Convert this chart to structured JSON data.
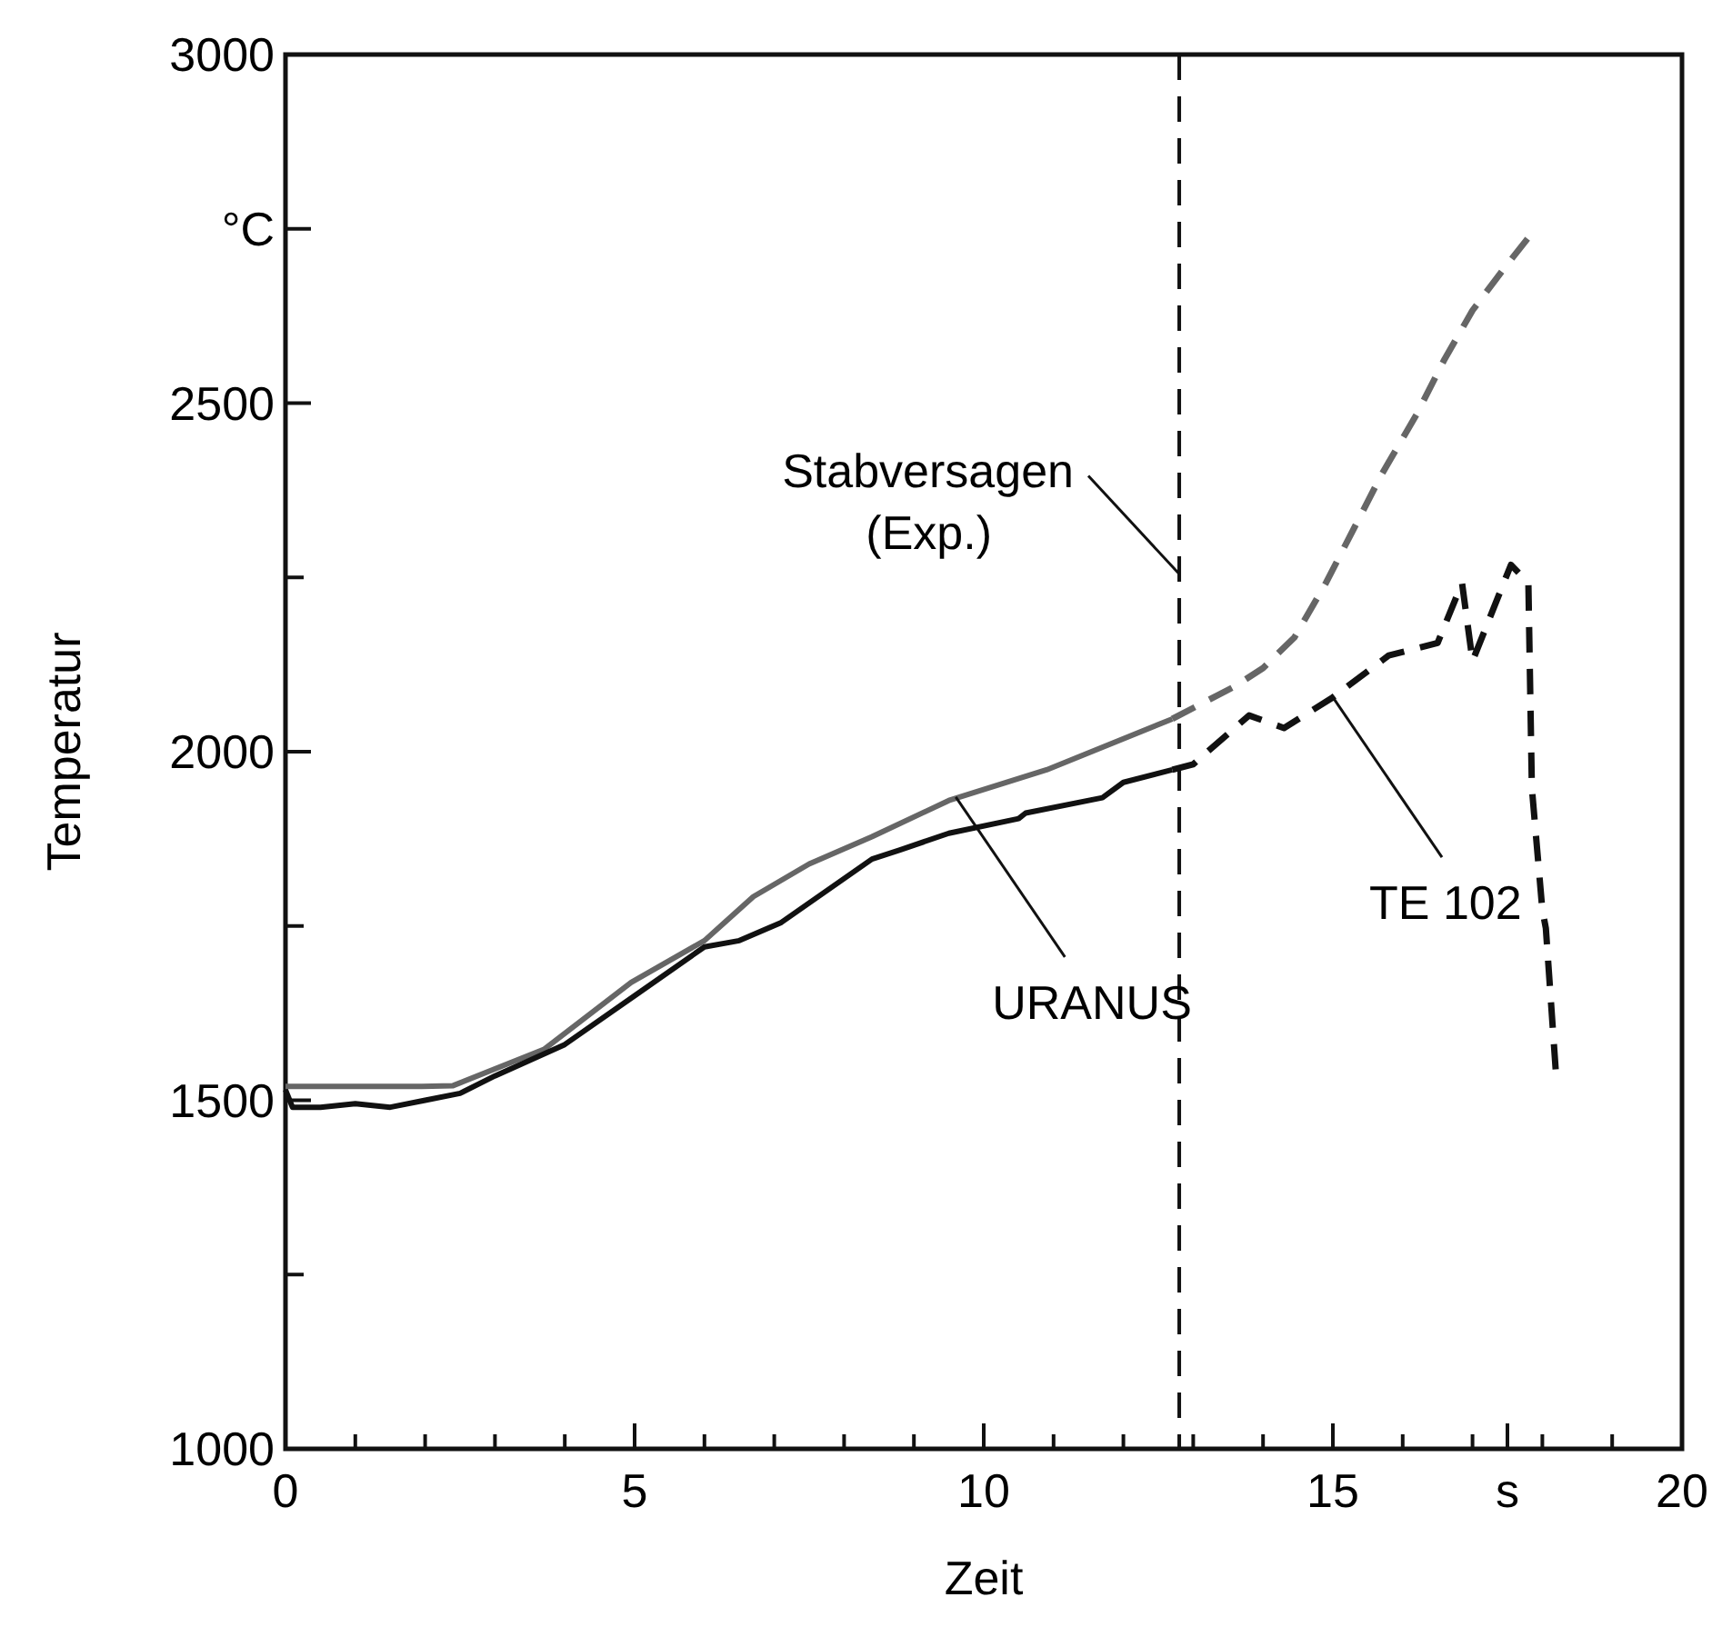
{
  "chart_data": {
    "type": "line",
    "xlabel": "Zeit",
    "ylabel": "Temperatur",
    "xlim": [
      0,
      20
    ],
    "ylim": [
      1000,
      3000
    ],
    "xticks": [
      0,
      {
        "value": 1,
        "label": null
      },
      {
        "value": 2,
        "label": null
      },
      {
        "value": 3,
        "label": null
      },
      {
        "value": 4,
        "label": null
      },
      5,
      {
        "value": 6,
        "label": null
      },
      {
        "value": 7,
        "label": null
      },
      {
        "value": 8,
        "label": null
      },
      {
        "value": 9,
        "label": null
      },
      10,
      {
        "value": 11,
        "label": null
      },
      {
        "value": 12,
        "label": null
      },
      {
        "value": 13,
        "label": null
      },
      {
        "value": 14,
        "label": null
      },
      15,
      {
        "value": 16,
        "label": null
      },
      {
        "value": 17,
        "label": null
      },
      {
        "value": 17.5,
        "label": "s"
      },
      {
        "value": 18,
        "label": null
      },
      {
        "value": 19,
        "label": null
      },
      20
    ],
    "yticks": [
      1000,
      {
        "value": 1250,
        "label": null
      },
      1500,
      {
        "value": 1750,
        "label": null
      },
      2000,
      {
        "value": 2250,
        "label": null
      },
      2500,
      {
        "value": 2750,
        "label": "°C"
      },
      3000
    ],
    "grid": false,
    "marker": "none",
    "series": [
      {
        "color": "#666666",
        "line_style": "solid",
        "x": [
          0,
          1,
          1.95,
          2.4,
          3.7,
          4.95,
          6.0,
          6.7,
          7.5,
          8.4,
          9.5,
          10.9,
          12.7
        ],
        "values": [
          1520,
          1520,
          1520,
          1521,
          1573,
          1669,
          1729,
          1792,
          1839,
          1878,
          1930,
          1974,
          2047
        ]
      },
      {
        "color": "#666666",
        "line_style": "dashed",
        "x": [
          12.7,
          13.6,
          14.0,
          14.45,
          14.9,
          15.3,
          15.7,
          16.2,
          16.6,
          17.0,
          17.45,
          17.9
        ],
        "values": [
          2047,
          2094,
          2120,
          2164,
          2242,
          2320,
          2398,
          2484,
          2563,
          2633,
          2693,
          2750
        ]
      },
      {
        "color": "#111111",
        "line_style": "solid",
        "x": [
          0,
          0.1,
          0.5,
          1,
          1.5,
          2,
          2.5,
          3,
          4,
          5,
          6,
          6.5,
          7.1,
          8.4,
          8.8,
          9.5,
          10.5,
          10.6,
          11.7,
          12.0,
          12.7
        ],
        "values": [
          1515,
          1490,
          1490,
          1495,
          1490,
          1500,
          1510,
          1535,
          1580,
          1650,
          1720,
          1729,
          1755,
          1846,
          1859,
          1883,
          1904,
          1912,
          1934,
          1956,
          1974
        ]
      },
      {
        "color": "#111111",
        "line_style": "dashed",
        "x": [
          12.7,
          13.0,
          13.8,
          14.3,
          15.0,
          15.8,
          16.5,
          16.85,
          17.0,
          17.55,
          17.8,
          17.85,
          18.0,
          18.05,
          18.2
        ],
        "values": [
          1974,
          1982,
          2052,
          2034,
          2078,
          2138,
          2156,
          2242,
          2130,
          2268,
          2242,
          1948,
          1773,
          1747,
          1531
        ]
      }
    ],
    "ref_lines": [
      {
        "axis": "x",
        "value": 12.8,
        "label": "Stabversagen (Exp.)",
        "color": "#111111",
        "line_style": "dashed"
      }
    ],
    "annotations": [
      {
        "text": "URANUS",
        "x": 9.6,
        "y": 1935
      },
      {
        "text": "TE 102",
        "x": 15.0,
        "y": 2078
      }
    ]
  }
}
